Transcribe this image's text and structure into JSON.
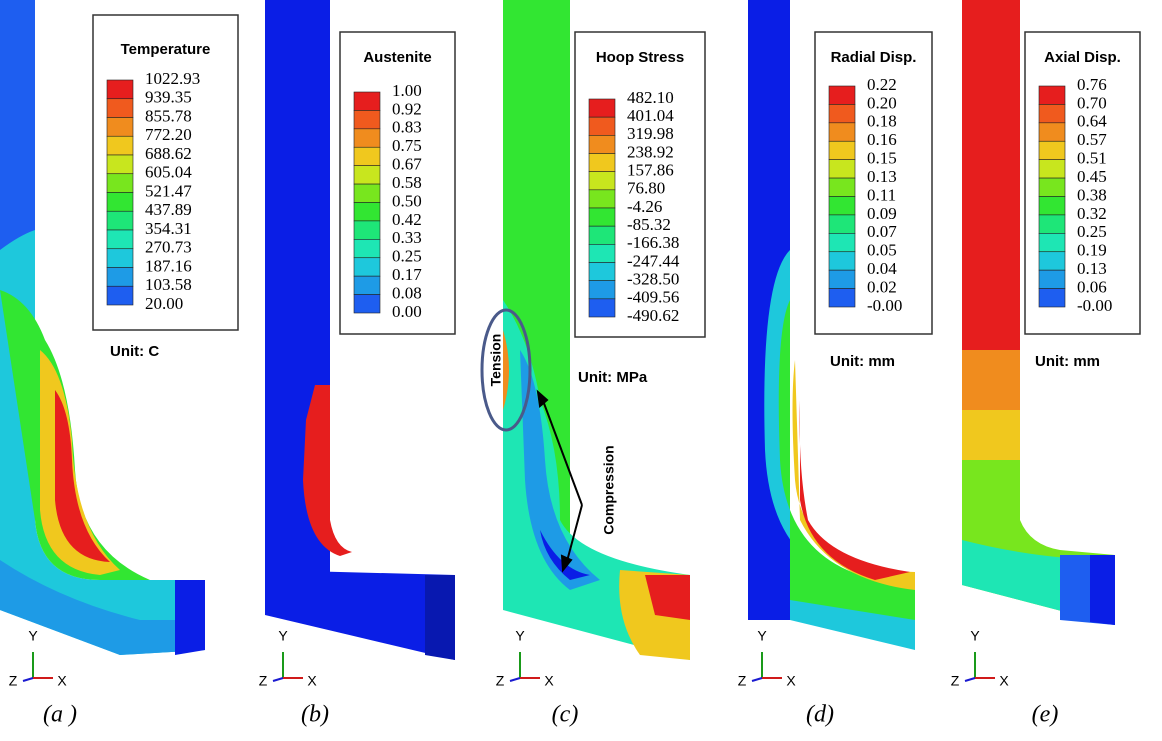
{
  "panels": [
    {
      "title": "Temperature",
      "values": [
        "1022.93",
        "939.35",
        "855.78",
        "772.20",
        "688.62",
        "605.04",
        "521.47",
        "437.89",
        "354.31",
        "270.73",
        "187.16",
        "103.58",
        "20.00"
      ],
      "unit": "Unit: C",
      "caption": "(a )"
    },
    {
      "title": "Austenite",
      "values": [
        "1.00",
        "0.92",
        "0.83",
        "0.75",
        "0.67",
        "0.58",
        "0.50",
        "0.42",
        "0.33",
        "0.25",
        "0.17",
        "0.08",
        "0.00"
      ],
      "caption": "(b)"
    },
    {
      "title": "Hoop Stress",
      "values": [
        "482.10",
        "401.04",
        "319.98",
        "238.92",
        "157.86",
        "76.80",
        "-4.26",
        "-85.32",
        "-166.38",
        "-247.44",
        "-328.50",
        "-409.56",
        "-490.62"
      ],
      "unit": "Unit: MPa",
      "caption": "(c)",
      "annotations": [
        "Tension",
        "Compression"
      ]
    },
    {
      "title": "Radial Disp.",
      "values": [
        "0.22",
        "0.20",
        "0.18",
        "0.16",
        "0.15",
        "0.13",
        "0.11",
        "0.09",
        "0.07",
        "0.05",
        "0.04",
        "0.02",
        "-0.00"
      ],
      "unit": "Unit: mm",
      "caption": "(d)"
    },
    {
      "title": "Axial Disp.",
      "values": [
        "0.76",
        "0.70",
        "0.64",
        "0.57",
        "0.51",
        "0.45",
        "0.38",
        "0.32",
        "0.25",
        "0.19",
        "0.13",
        "0.06",
        "-0.00"
      ],
      "unit": "Unit: mm",
      "caption": "(e)"
    }
  ],
  "axis_labels": {
    "y": "Y",
    "z": "Z",
    "x": "X"
  }
}
